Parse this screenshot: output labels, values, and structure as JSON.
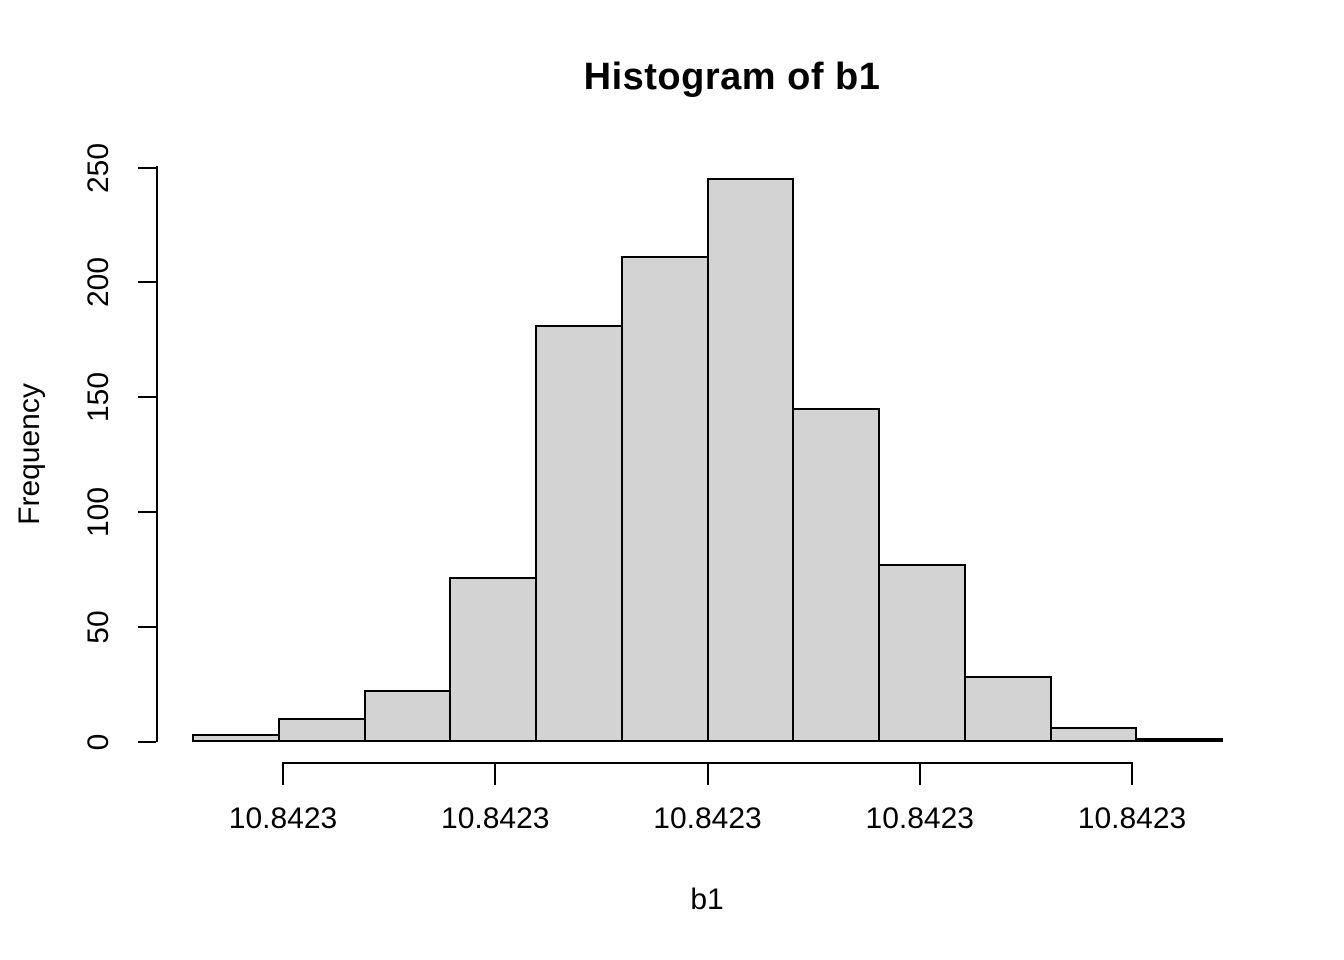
{
  "chart_data": {
    "type": "bar",
    "subtype": "histogram",
    "title": "Histogram of b1",
    "xlabel": "b1",
    "ylabel": "Frequency",
    "values": [
      3,
      10,
      22,
      71,
      181,
      211,
      245,
      145,
      77,
      28,
      6,
      1
    ],
    "total_count": 1000,
    "y_ticks": [
      "0",
      "50",
      "100",
      "150",
      "200",
      "250"
    ],
    "y_tick_values": [
      0,
      50,
      100,
      150,
      200,
      250
    ],
    "x_tick_labels": [
      "10.8423",
      "10.8423",
      "10.8423",
      "10.8423",
      "10.8423"
    ],
    "ylim": [
      0,
      250
    ],
    "legend": "none",
    "grid": "off",
    "bar_fill_color": "#d3d3d3",
    "bar_border_color": "#000000",
    "background_color": "#ffffff",
    "text_color": "#000000"
  }
}
